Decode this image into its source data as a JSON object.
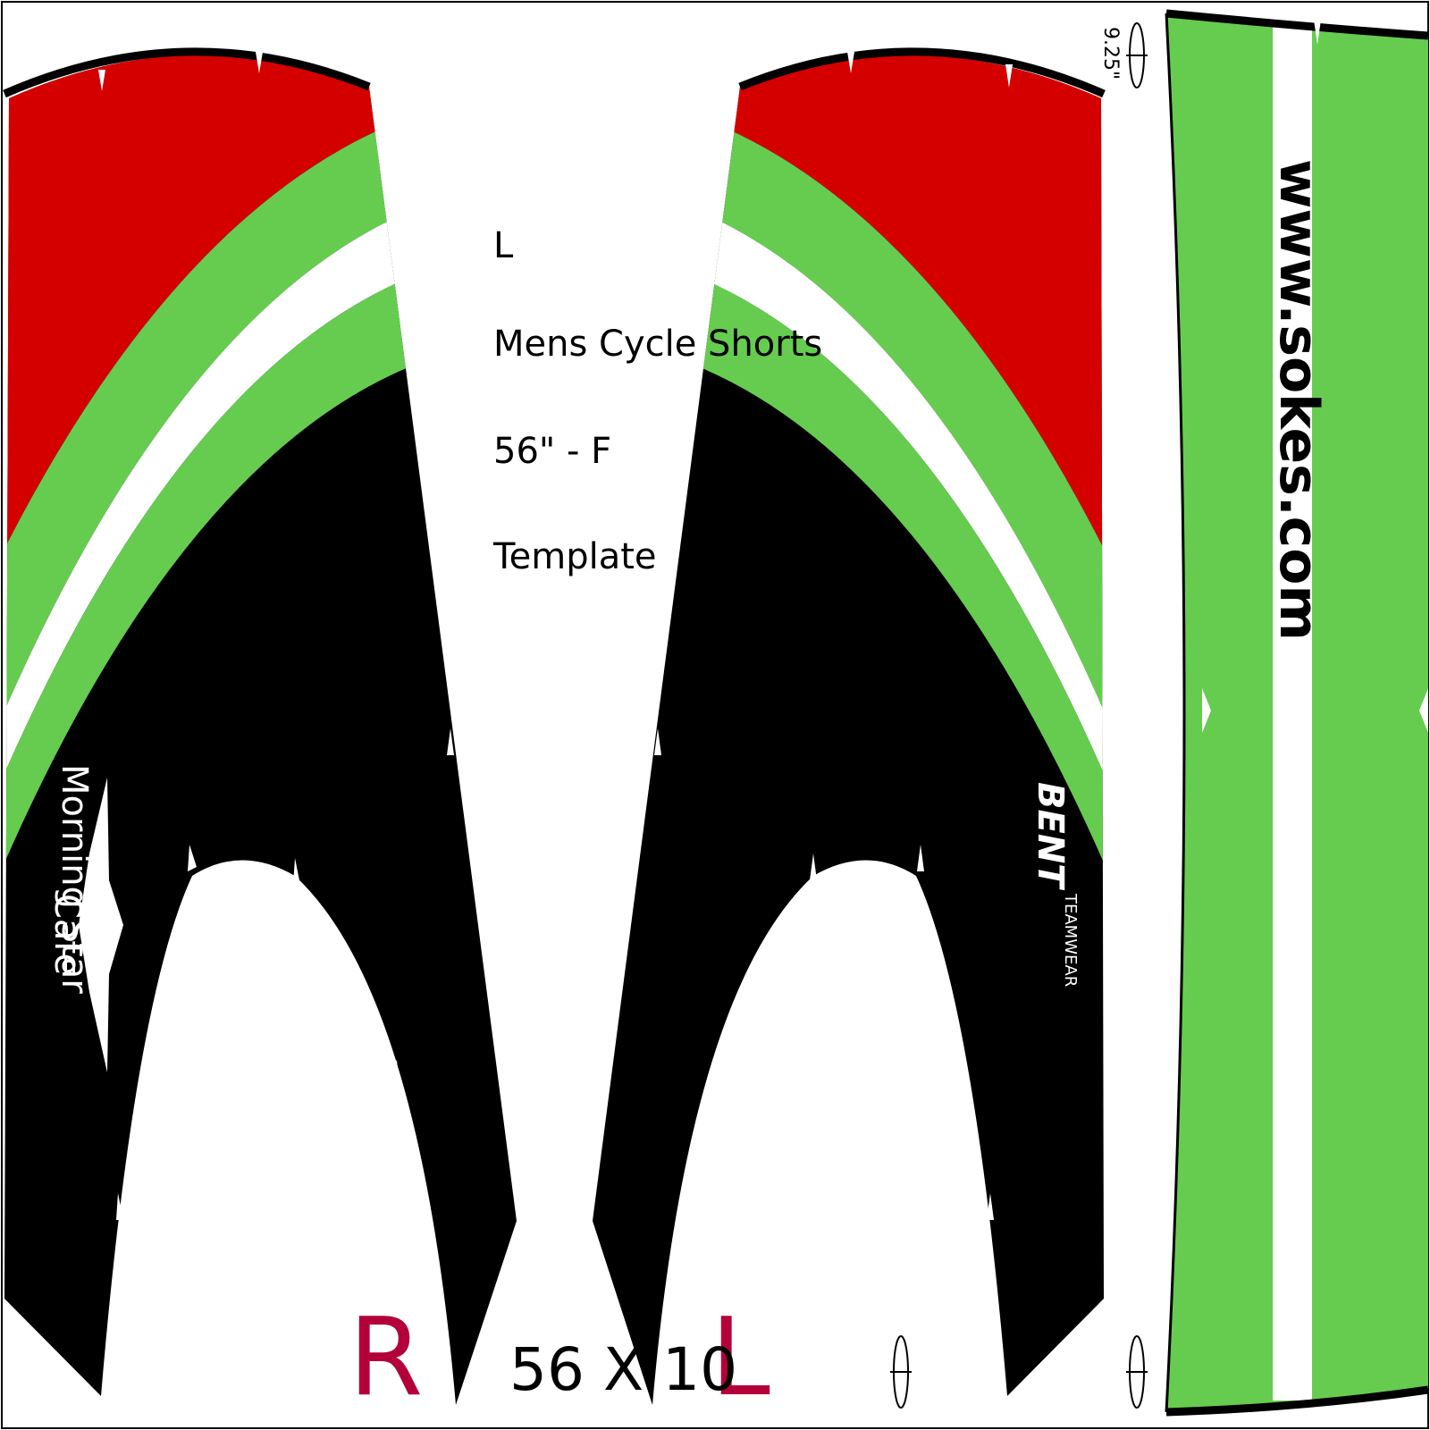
{
  "info": {
    "size": "L",
    "product": "Mens Cycle Shorts",
    "spec": "56\" - F",
    "kind": "Template"
  },
  "panels": {
    "right_label": "R",
    "left_label": "L",
    "dimensions": "56 X 10"
  },
  "waistband": {
    "measurement": "9.25\"",
    "url": "www.sokes.com"
  },
  "branding": {
    "right_logo_line1": "Morning Star",
    "right_logo_line2": "Cafe",
    "left_logo": "BENT",
    "left_logo_sub": "TEAMWEAR"
  },
  "colors": {
    "red": "#d40000",
    "green": "#66cc4f",
    "black": "#000000",
    "white": "#ffffff",
    "letter": "#b3003b"
  }
}
